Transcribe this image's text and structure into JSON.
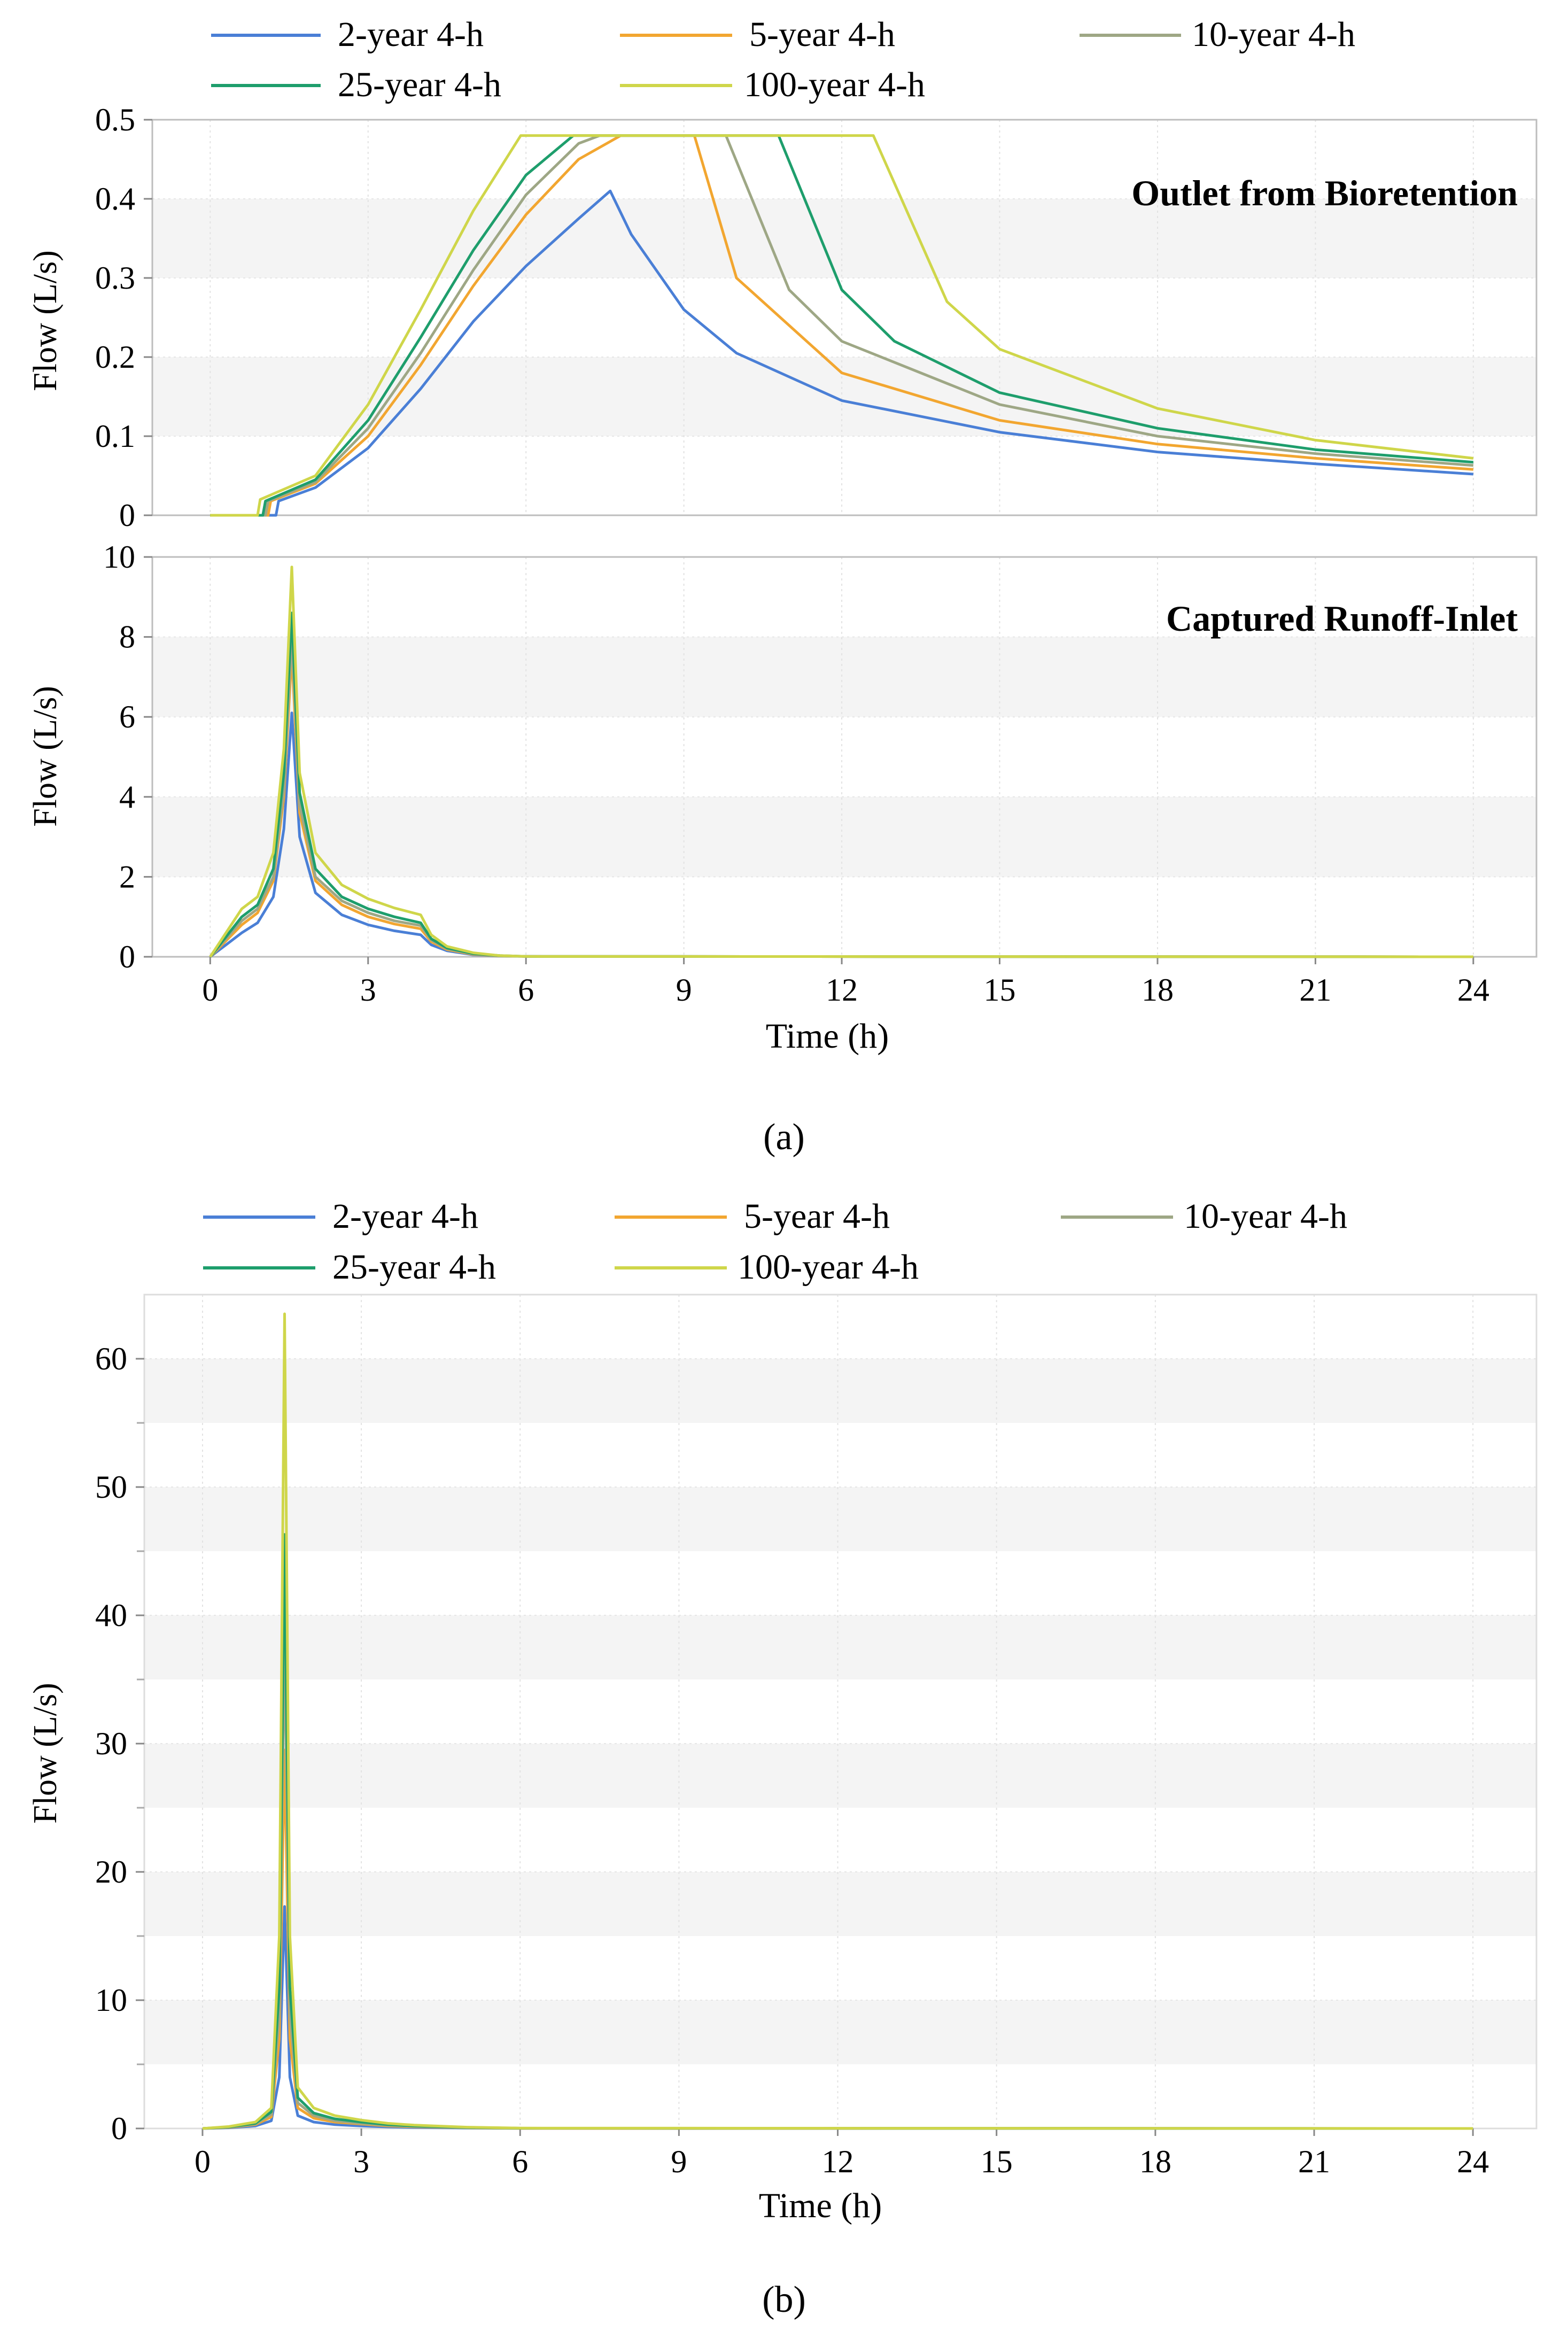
{
  "legend": {
    "entries": [
      {
        "label": "2-year 4-h",
        "color": "#4a7fd6"
      },
      {
        "label": "5-year 4-h",
        "color": "#f2a630"
      },
      {
        "label": "10-year 4-h",
        "color": "#9ea785"
      },
      {
        "label": "25-year 4-h",
        "color": "#1e9e6c"
      },
      {
        "label": "100-year 4-h",
        "color": "#cfd64a"
      }
    ]
  },
  "figure_a_caption": "(a)",
  "figure_b_caption": "(b)",
  "chart_data": [
    {
      "type": "line",
      "panel": "a-top",
      "title": "Outlet from Bioretention",
      "xlabel": "",
      "ylabel": "Flow (L/s)",
      "xlim": [
        -1.1,
        25.2
      ],
      "ylim": [
        0,
        0.5
      ],
      "yticks": [
        0,
        0.1,
        0.2,
        0.3,
        0.4,
        0.5
      ],
      "ytick_labels": [
        "0",
        "0.1",
        "0.2",
        "0.3",
        "0.4",
        "0.5"
      ],
      "grid": true,
      "series": [
        {
          "name": "2-year 4-h",
          "x": [
            0,
            1.25,
            1.3,
            2,
            3,
            4,
            5,
            6,
            7,
            7.6,
            8,
            9,
            10,
            12,
            15,
            18,
            21,
            24
          ],
          "y": [
            0,
            0,
            0.018,
            0.035,
            0.085,
            0.16,
            0.245,
            0.315,
            0.375,
            0.41,
            0.355,
            0.26,
            0.205,
            0.145,
            0.105,
            0.08,
            0.065,
            0.052
          ]
        },
        {
          "name": "5-year 4-h",
          "x": [
            0,
            1.1,
            1.15,
            2,
            3,
            4,
            5,
            6,
            7,
            7.8,
            9.2,
            10,
            12,
            15,
            18,
            21,
            24
          ],
          "y": [
            0,
            0,
            0.018,
            0.04,
            0.1,
            0.19,
            0.29,
            0.38,
            0.45,
            0.48,
            0.48,
            0.3,
            0.18,
            0.12,
            0.09,
            0.072,
            0.058
          ]
        },
        {
          "name": "10-year 4-h",
          "x": [
            0,
            1.05,
            1.1,
            2,
            3,
            4,
            5,
            6,
            7,
            7.4,
            9.8,
            11,
            12,
            15,
            18,
            21,
            24
          ],
          "y": [
            0,
            0,
            0.018,
            0.042,
            0.11,
            0.205,
            0.31,
            0.405,
            0.47,
            0.48,
            0.48,
            0.285,
            0.22,
            0.14,
            0.1,
            0.078,
            0.063
          ]
        },
        {
          "name": "25-year 4-h",
          "x": [
            0,
            1.0,
            1.05,
            2,
            3,
            4,
            5,
            6,
            6.9,
            10.8,
            12,
            13,
            15,
            18,
            21,
            24
          ],
          "y": [
            0,
            0,
            0.018,
            0.045,
            0.12,
            0.225,
            0.335,
            0.43,
            0.48,
            0.48,
            0.285,
            0.22,
            0.155,
            0.11,
            0.083,
            0.067
          ]
        },
        {
          "name": "100-year 4-h",
          "x": [
            0,
            0.9,
            0.95,
            2,
            3,
            4,
            5,
            5.9,
            12.6,
            14,
            15,
            18,
            21,
            24
          ],
          "y": [
            0,
            0,
            0.02,
            0.05,
            0.14,
            0.26,
            0.385,
            0.48,
            0.48,
            0.27,
            0.21,
            0.135,
            0.095,
            0.072
          ]
        }
      ]
    },
    {
      "type": "line",
      "panel": "a-bottom",
      "title": "Captured Runoff-Inlet",
      "xlabel": "Time (h)",
      "ylabel": "Flow (L/s)",
      "xlim": [
        -1.1,
        25.2
      ],
      "ylim": [
        0,
        10
      ],
      "xticks": [
        0,
        3,
        6,
        9,
        12,
        15,
        18,
        21,
        24
      ],
      "xtick_labels": [
        "0",
        "3",
        "6",
        "9",
        "12",
        "15",
        "18",
        "21",
        "24"
      ],
      "yticks": [
        0,
        2,
        4,
        6,
        8,
        10
      ],
      "ytick_labels": [
        "0",
        "2",
        "4",
        "6",
        "8",
        "10"
      ],
      "grid": true,
      "series": [
        {
          "name": "2-year 4-h",
          "x": [
            0,
            0.3,
            0.6,
            0.9,
            1.2,
            1.4,
            1.55,
            1.7,
            2,
            2.5,
            3,
            3.5,
            4,
            4.2,
            4.5,
            5,
            5.5,
            6,
            24
          ],
          "y": [
            0,
            0.3,
            0.6,
            0.85,
            1.5,
            3.2,
            6.1,
            3.0,
            1.6,
            1.05,
            0.8,
            0.65,
            0.55,
            0.3,
            0.15,
            0.05,
            0.02,
            0.01,
            0
          ]
        },
        {
          "name": "5-year 4-h",
          "x": [
            0,
            0.3,
            0.6,
            0.9,
            1.2,
            1.4,
            1.55,
            1.7,
            2,
            2.5,
            3,
            3.5,
            4,
            4.2,
            4.5,
            5,
            5.5,
            6,
            24
          ],
          "y": [
            0,
            0.4,
            0.8,
            1.1,
            1.9,
            4.0,
            7.6,
            3.6,
            1.9,
            1.3,
            1.0,
            0.82,
            0.7,
            0.38,
            0.18,
            0.06,
            0.02,
            0.01,
            0
          ]
        },
        {
          "name": "10-year 4-h",
          "x": [
            0,
            0.3,
            0.6,
            0.9,
            1.2,
            1.4,
            1.55,
            1.7,
            2,
            2.5,
            3,
            3.5,
            4,
            4.2,
            4.5,
            5,
            5.5,
            6,
            24
          ],
          "y": [
            0,
            0.45,
            0.9,
            1.2,
            2.0,
            4.2,
            8.0,
            3.8,
            2.0,
            1.4,
            1.1,
            0.9,
            0.78,
            0.42,
            0.2,
            0.07,
            0.02,
            0.01,
            0
          ]
        },
        {
          "name": "25-year 4-h",
          "x": [
            0,
            0.3,
            0.6,
            0.9,
            1.2,
            1.4,
            1.55,
            1.7,
            2,
            2.5,
            3,
            3.5,
            4,
            4.2,
            4.5,
            5,
            5.5,
            6,
            24
          ],
          "y": [
            0,
            0.5,
            1.0,
            1.3,
            2.2,
            4.6,
            8.6,
            4.1,
            2.2,
            1.5,
            1.2,
            1.0,
            0.85,
            0.45,
            0.22,
            0.08,
            0.03,
            0.01,
            0
          ]
        },
        {
          "name": "100-year 4-h",
          "x": [
            0,
            0.3,
            0.6,
            0.9,
            1.2,
            1.4,
            1.55,
            1.7,
            2,
            2.5,
            3,
            3.5,
            4,
            4.2,
            4.5,
            5,
            5.5,
            6,
            24
          ],
          "y": [
            0,
            0.6,
            1.2,
            1.5,
            2.6,
            5.2,
            9.75,
            4.6,
            2.6,
            1.8,
            1.45,
            1.22,
            1.05,
            0.55,
            0.26,
            0.1,
            0.03,
            0.01,
            0
          ]
        }
      ]
    },
    {
      "type": "line",
      "panel": "b",
      "title": "",
      "xlabel": "Time (h)",
      "ylabel": "Flow (L/s)",
      "xlim": [
        -1.1,
        25.2
      ],
      "ylim": [
        0,
        65
      ],
      "xticks": [
        0,
        3,
        6,
        9,
        12,
        15,
        18,
        21,
        24
      ],
      "xtick_labels": [
        "0",
        "3",
        "6",
        "9",
        "12",
        "15",
        "18",
        "21",
        "24"
      ],
      "yticks": [
        0,
        10,
        20,
        30,
        40,
        50,
        60
      ],
      "ytick_labels": [
        "0",
        "10",
        "20",
        "30",
        "40",
        "50",
        "60"
      ],
      "grid": true,
      "series": [
        {
          "name": "2-year 4-h",
          "x": [
            0,
            0.5,
            1.0,
            1.3,
            1.45,
            1.55,
            1.65,
            1.8,
            2.1,
            2.5,
            3,
            3.5,
            4,
            5,
            6,
            24
          ],
          "y": [
            0,
            0.05,
            0.2,
            0.6,
            4.0,
            17.3,
            4.0,
            1.0,
            0.5,
            0.3,
            0.2,
            0.12,
            0.08,
            0.03,
            0.01,
            0
          ]
        },
        {
          "name": "5-year 4-h",
          "x": [
            0,
            0.5,
            1.0,
            1.3,
            1.45,
            1.55,
            1.65,
            1.8,
            2.1,
            2.5,
            3,
            3.5,
            4,
            5,
            6,
            24
          ],
          "y": [
            0,
            0.08,
            0.3,
            0.9,
            7.0,
            29.5,
            7.0,
            1.6,
            0.8,
            0.5,
            0.35,
            0.2,
            0.13,
            0.05,
            0.01,
            0
          ]
        },
        {
          "name": "10-year 4-h",
          "x": [
            0,
            0.5,
            1.0,
            1.3,
            1.45,
            1.55,
            1.65,
            1.8,
            2.1,
            2.5,
            3,
            3.5,
            4,
            5,
            6,
            24
          ],
          "y": [
            0,
            0.1,
            0.35,
            1.1,
            9.0,
            38.5,
            9.0,
            2.0,
            1.0,
            0.6,
            0.4,
            0.25,
            0.16,
            0.06,
            0.02,
            0
          ]
        },
        {
          "name": "25-year 4-h",
          "x": [
            0,
            0.5,
            1.0,
            1.3,
            1.45,
            1.55,
            1.65,
            1.8,
            2.1,
            2.5,
            3,
            3.5,
            4,
            5,
            6,
            24
          ],
          "y": [
            0,
            0.12,
            0.4,
            1.3,
            11.0,
            46.3,
            11.0,
            2.4,
            1.2,
            0.75,
            0.5,
            0.3,
            0.2,
            0.08,
            0.02,
            0
          ]
        },
        {
          "name": "100-year 4-h",
          "x": [
            0,
            0.5,
            1.0,
            1.3,
            1.45,
            1.55,
            1.65,
            1.8,
            2.1,
            2.5,
            3,
            3.5,
            4,
            5,
            6,
            24
          ],
          "y": [
            0,
            0.15,
            0.5,
            1.6,
            15.0,
            63.5,
            15.0,
            3.2,
            1.6,
            1.0,
            0.65,
            0.4,
            0.26,
            0.1,
            0.03,
            0
          ]
        }
      ]
    }
  ]
}
